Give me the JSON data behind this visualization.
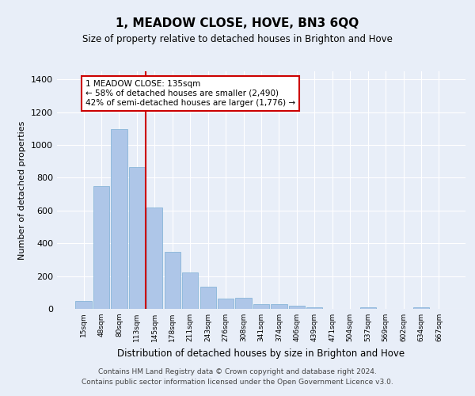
{
  "title": "1, MEADOW CLOSE, HOVE, BN3 6QQ",
  "subtitle": "Size of property relative to detached houses in Brighton and Hove",
  "xlabel": "Distribution of detached houses by size in Brighton and Hove",
  "ylabel": "Number of detached properties",
  "footer1": "Contains HM Land Registry data © Crown copyright and database right 2024.",
  "footer2": "Contains public sector information licensed under the Open Government Licence v3.0.",
  "categories": [
    "15sqm",
    "48sqm",
    "80sqm",
    "113sqm",
    "145sqm",
    "178sqm",
    "211sqm",
    "243sqm",
    "276sqm",
    "308sqm",
    "341sqm",
    "374sqm",
    "406sqm",
    "439sqm",
    "471sqm",
    "504sqm",
    "537sqm",
    "569sqm",
    "602sqm",
    "634sqm",
    "667sqm"
  ],
  "values": [
    50,
    750,
    1095,
    865,
    620,
    350,
    220,
    135,
    65,
    70,
    30,
    30,
    20,
    12,
    0,
    0,
    12,
    0,
    0,
    12,
    0
  ],
  "bar_color": "#aec6e8",
  "bar_edge_color": "#7bafd4",
  "ylim": [
    0,
    1450
  ],
  "yticks": [
    0,
    200,
    400,
    600,
    800,
    1000,
    1200,
    1400
  ],
  "vline_x_index": 4,
  "vline_color": "#cc0000",
  "annotation_line1": "1 MEADOW CLOSE: 135sqm",
  "annotation_line2": "← 58% of detached houses are smaller (2,490)",
  "annotation_line3": "42% of semi-detached houses are larger (1,776) →",
  "annotation_box_color": "#cc0000",
  "bg_color": "#e8eef8",
  "grid_color": "#ffffff"
}
